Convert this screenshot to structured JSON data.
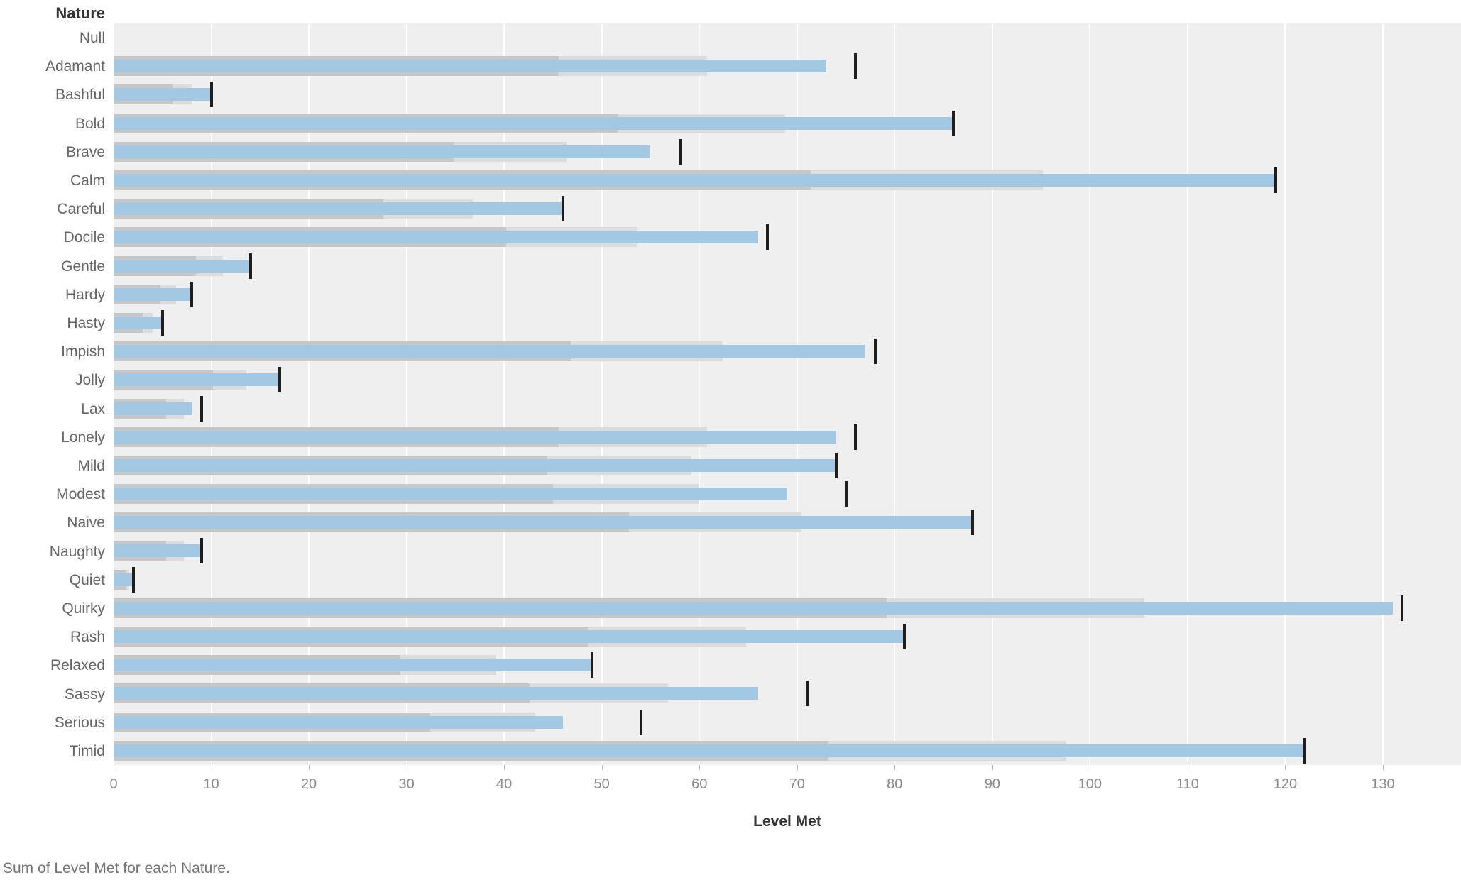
{
  "header": {
    "column_title": "Nature"
  },
  "axis": {
    "label": "Level Met"
  },
  "caption": "Sum of Level Met for each Nature.",
  "colors": {
    "bar_blue": "#a2c8e4",
    "band_60pct": "#c7c7c7",
    "band_80pct": "#dcdcdc",
    "pane_background": "#efefef",
    "reference_tick": "#1e1e1e",
    "gridline": "#ffffff",
    "label_gray": "#666666",
    "axis_label_gray": "#8a8a8a"
  },
  "chart_data": {
    "type": "bar",
    "subtype": "bullet",
    "orientation": "horizontal",
    "title": "Sum of Level Met for each Nature",
    "xlabel": "Level Met",
    "ylabel": "Nature",
    "xlim": [
      0,
      138
    ],
    "x_ticks": [
      0,
      10,
      20,
      30,
      40,
      50,
      60,
      70,
      80,
      90,
      100,
      110,
      120,
      130
    ],
    "grid": true,
    "legend": false,
    "band_rule": "gray bands drawn at 60% and 80% of each row's reference value",
    "categories": [
      "Null",
      "Adamant",
      "Bashful",
      "Bold",
      "Brave",
      "Calm",
      "Careful",
      "Docile",
      "Gentle",
      "Hardy",
      "Hasty",
      "Impish",
      "Jolly",
      "Lax",
      "Lonely",
      "Mild",
      "Modest",
      "Naive",
      "Naughty",
      "Quiet",
      "Quirky",
      "Rash",
      "Relaxed",
      "Sassy",
      "Serious",
      "Timid"
    ],
    "series": [
      {
        "name": "Level Met (blue bar)",
        "values": [
          null,
          73,
          10,
          86,
          55,
          119,
          46,
          66,
          14,
          8,
          5,
          77,
          17,
          8,
          74,
          74,
          69,
          88,
          9,
          2,
          131,
          81,
          49,
          66,
          46,
          122
        ]
      },
      {
        "name": "Reference line (black tick)",
        "values": [
          null,
          76,
          10,
          86,
          58,
          119,
          46,
          67,
          14,
          8,
          5,
          78,
          17,
          9,
          76,
          74,
          75,
          88,
          9,
          2,
          132,
          81,
          49,
          71,
          54,
          122
        ]
      }
    ]
  }
}
